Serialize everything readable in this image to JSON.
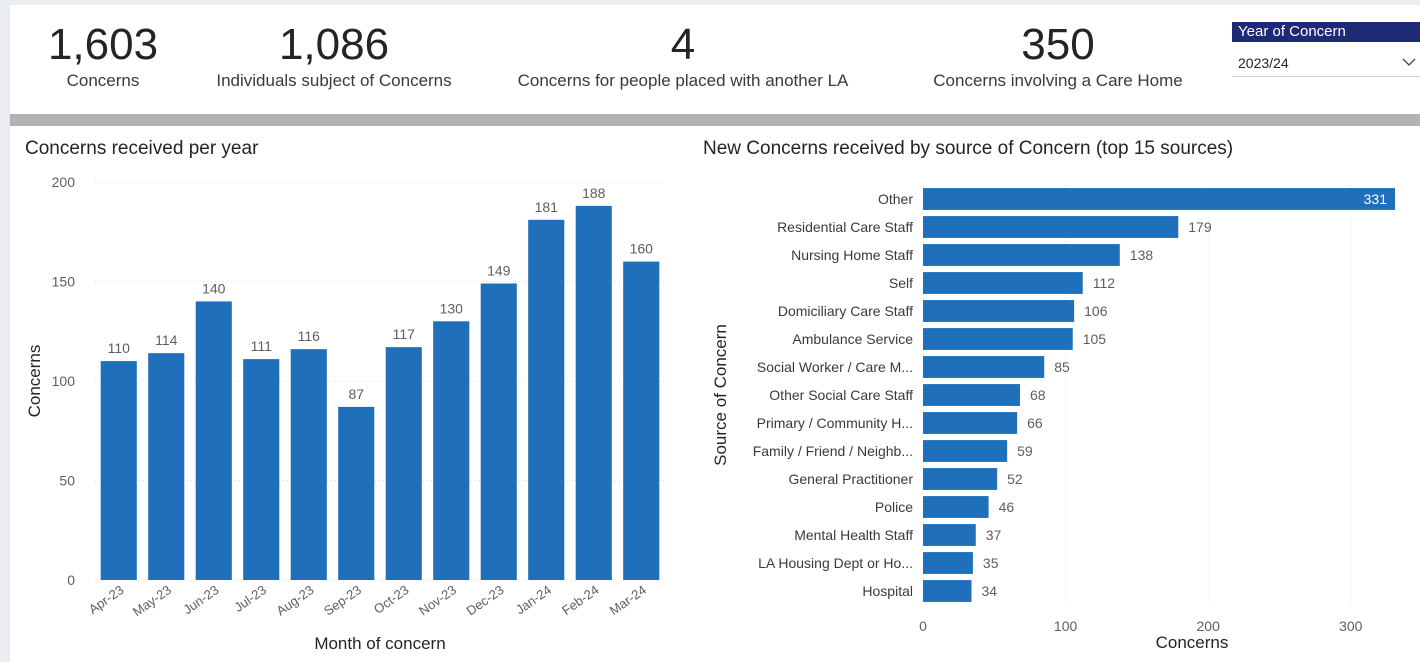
{
  "kpis": [
    {
      "value": "1,603",
      "label": "Concerns"
    },
    {
      "value": "1,086",
      "label": "Individuals subject of Concerns"
    },
    {
      "value": "4",
      "label": "Concerns for people placed with another LA"
    },
    {
      "value": "350",
      "label": "Concerns involving a Care Home"
    }
  ],
  "slicer": {
    "title": "Year of Concern",
    "selected": "2023/24",
    "icon": "chevron-down-icon"
  },
  "colors": {
    "bar": "#1f6fbb",
    "slicer_header": "#1f2a77",
    "divider": "#b3b3b3"
  },
  "chart_data": [
    {
      "type": "bar",
      "title": "Concerns received per year",
      "xlabel": "Month of concern",
      "ylabel": "Concerns",
      "ylim": [
        0,
        200
      ],
      "yticks": [
        0,
        50,
        100,
        150,
        200
      ],
      "grid": true,
      "categories": [
        "Apr-23",
        "May-23",
        "Jun-23",
        "Jul-23",
        "Aug-23",
        "Sep-23",
        "Oct-23",
        "Nov-23",
        "Dec-23",
        "Jan-24",
        "Feb-24",
        "Mar-24"
      ],
      "values": [
        110,
        114,
        140,
        111,
        116,
        87,
        117,
        130,
        149,
        181,
        188,
        160
      ]
    },
    {
      "type": "bar",
      "orientation": "horizontal",
      "title": "New Concerns received by source of Concern (top 15 sources)",
      "xlabel": "Concerns",
      "ylabel": "Source of Concern",
      "xlim": [
        0,
        331
      ],
      "xticks": [
        0,
        100,
        200,
        300
      ],
      "grid": true,
      "categories": [
        "Other",
        "Residential Care Staff",
        "Nursing Home Staff",
        "Self",
        "Domiciliary Care Staff",
        "Ambulance Service",
        "Social Worker / Care M...",
        "Other Social Care Staff",
        "Primary / Community H...",
        "Family / Friend / Neighb...",
        "General Practitioner",
        "Police",
        "Mental Health Staff",
        "LA Housing Dept or Ho...",
        "Hospital"
      ],
      "values": [
        331,
        179,
        138,
        112,
        106,
        105,
        85,
        68,
        66,
        59,
        52,
        46,
        37,
        35,
        34
      ]
    }
  ]
}
